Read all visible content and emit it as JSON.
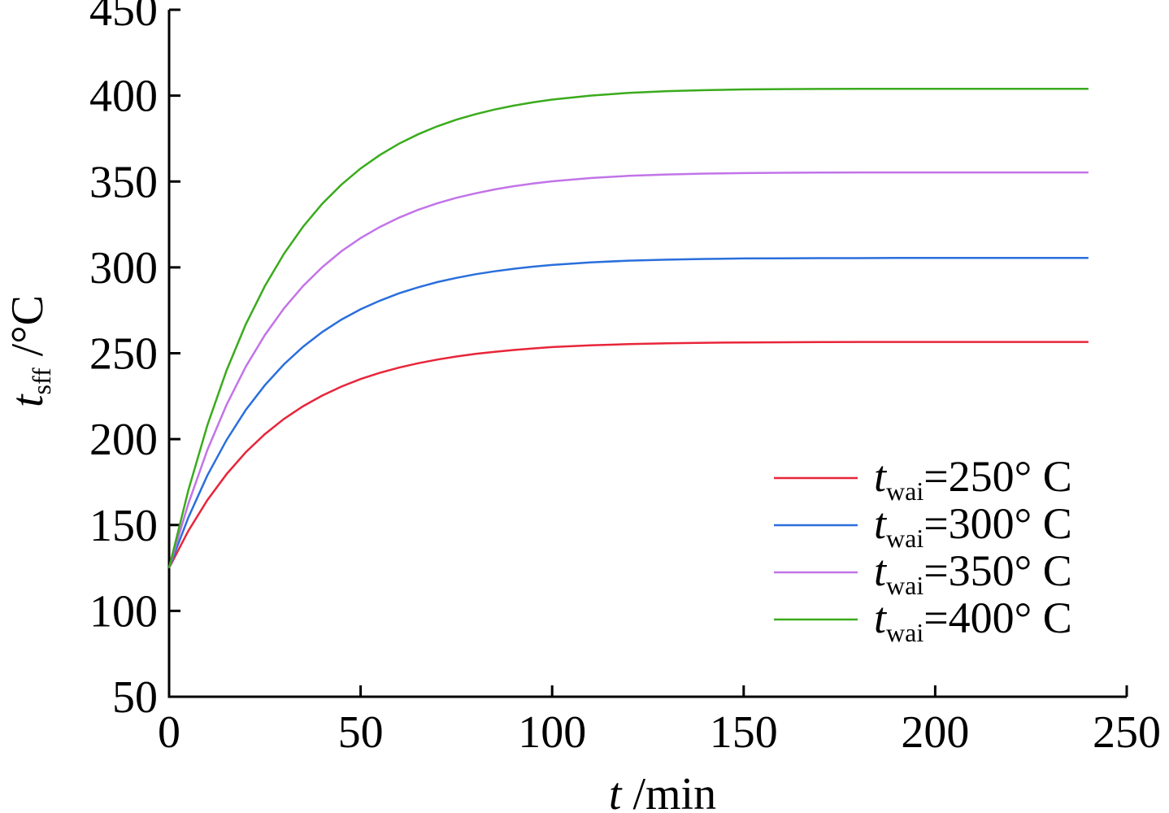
{
  "chart_data": {
    "type": "line",
    "xlabel": {
      "italic": "t",
      "rest": " /min"
    },
    "ylabel": {
      "italic": "t",
      "sub": "sff",
      "rest": " /°C"
    },
    "xlim": [
      0,
      250
    ],
    "ylim": [
      50,
      450
    ],
    "xticks": [
      0,
      50,
      100,
      150,
      200,
      250
    ],
    "yticks": [
      50,
      100,
      150,
      200,
      250,
      300,
      350,
      400,
      450
    ],
    "grid": false,
    "legend_position": "bottom-right",
    "x": [
      0,
      5,
      10,
      15,
      20,
      25,
      30,
      35,
      40,
      45,
      50,
      55,
      60,
      65,
      70,
      75,
      80,
      85,
      90,
      95,
      100,
      110,
      120,
      130,
      140,
      150,
      160,
      170,
      180,
      190,
      200,
      210,
      220,
      230,
      240
    ],
    "series": [
      {
        "name": "t_wai=250° C",
        "legend": {
          "italic": "t",
          "sub": "wai",
          "rest": "=250° C"
        },
        "color": "#e8253a",
        "values": [
          125,
          146.5,
          164.5,
          179.6,
          192.3,
          202.9,
          211.8,
          219.2,
          225.4,
          230.6,
          235,
          238.6,
          241.6,
          244.2,
          246.3,
          248.1,
          249.6,
          250.8,
          251.9,
          252.8,
          253.6,
          254.6,
          255.3,
          255.8,
          256.1,
          256.3,
          256.4,
          256.5,
          256.6,
          256.6,
          256.6,
          256.6,
          256.6,
          256.6,
          256.6
        ]
      },
      {
        "name": "t_wai=300° C",
        "legend": {
          "italic": "t",
          "sub": "wai",
          "rest": "=300° C"
        },
        "color": "#2a6fdc",
        "values": [
          125,
          154.3,
          178.9,
          199.5,
          216.9,
          231.4,
          243.6,
          253.8,
          262.4,
          269.6,
          275.6,
          280.6,
          284.9,
          288.4,
          291.4,
          293.9,
          296,
          297.7,
          299.2,
          300.4,
          301.4,
          302.9,
          303.9,
          304.5,
          304.9,
          305.2,
          305.3,
          305.4,
          305.4,
          305.5,
          305.5,
          305.5,
          305.5,
          305.5,
          305.5
        ]
      },
      {
        "name": "t_wai=350° C",
        "legend": {
          "italic": "t",
          "sub": "wai",
          "rest": "=350° C"
        },
        "color": "#c274e8",
        "values": [
          125,
          162.3,
          193.7,
          220,
          242.1,
          260.6,
          276.2,
          289.2,
          300.2,
          309.4,
          317.1,
          323.5,
          328.9,
          333.5,
          337.3,
          340.5,
          343.1,
          345.4,
          347.3,
          348.8,
          350.1,
          352,
          353.3,
          354.1,
          354.6,
          354.9,
          355.1,
          355.2,
          355.3,
          355.3,
          355.3,
          355.3,
          355.3,
          355.3,
          355.3
        ]
      },
      {
        "name": "t_wai=400° C",
        "legend": {
          "italic": "t",
          "sub": "wai",
          "rest": "=400° C"
        },
        "color": "#3aab1c",
        "values": [
          125,
          170.1,
          208.1,
          240,
          266.7,
          289.1,
          308,
          323.8,
          337.1,
          348.2,
          357.6,
          365.4,
          372,
          377.5,
          382.1,
          386,
          389.2,
          391.9,
          394.2,
          396.1,
          397.7,
          400,
          401.6,
          402.6,
          403.2,
          403.6,
          403.8,
          403.9,
          404,
          404,
          404,
          404,
          404,
          404,
          404
        ]
      }
    ]
  }
}
